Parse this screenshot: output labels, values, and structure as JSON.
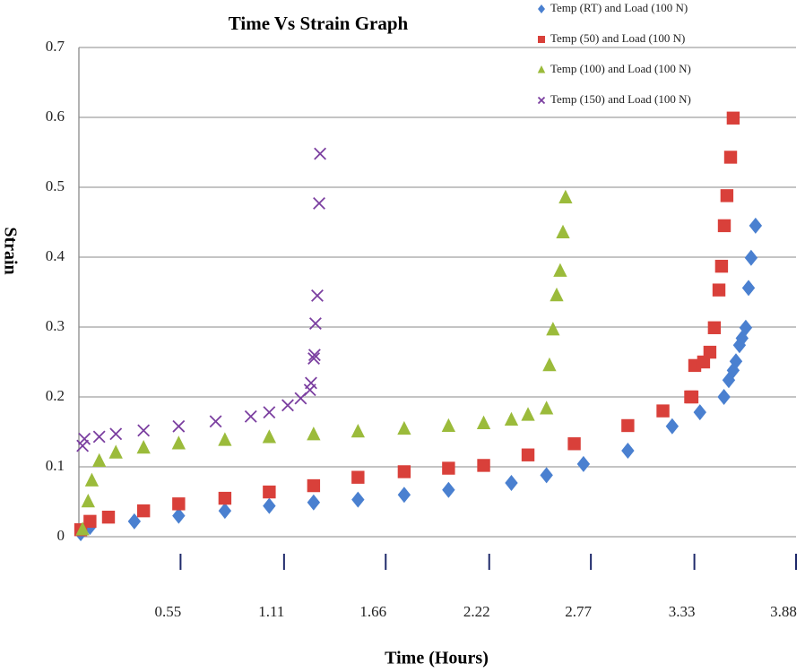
{
  "chart_data": {
    "type": "scatter",
    "title": "Time Vs Strain Graph",
    "x_label": "Time (Hours)",
    "y_label": "Strain",
    "xlim": [
      0,
      3.88
    ],
    "ylim": [
      0,
      0.7
    ],
    "xticks": [
      0.55,
      1.11,
      1.66,
      2.22,
      2.77,
      3.33,
      3.88
    ],
    "yticks": [
      0,
      0.1,
      0.2,
      0.3,
      0.4,
      0.5,
      0.6,
      0.7
    ],
    "grid": true,
    "legend": "top-right",
    "series": [
      {
        "name": "Temp (RT) and Load (100 N)",
        "color": "#4a80d0",
        "marker": "diamond",
        "x": [
          0.01,
          0.06,
          0.3,
          0.54,
          0.79,
          1.03,
          1.27,
          1.51,
          1.76,
          2.0,
          2.34,
          2.53,
          2.73,
          2.97,
          3.21,
          3.36,
          3.49,
          3.516,
          3.54,
          3.555,
          3.574,
          3.588,
          3.608,
          3.623,
          3.637,
          3.661
        ],
        "values": [
          0.005,
          0.014,
          0.022,
          0.03,
          0.037,
          0.044,
          0.049,
          0.053,
          0.06,
          0.067,
          0.077,
          0.088,
          0.104,
          0.123,
          0.158,
          0.178,
          0.2,
          0.224,
          0.238,
          0.251,
          0.274,
          0.284,
          0.299,
          0.356,
          0.399,
          0.445
        ]
      },
      {
        "name": "Temp (50) and Load (100 N)",
        "color": "#d9403a",
        "marker": "square",
        "x": [
          0.01,
          0.06,
          0.16,
          0.35,
          0.54,
          0.79,
          1.03,
          1.27,
          1.51,
          1.76,
          2.0,
          2.19,
          2.43,
          2.68,
          2.97,
          3.16,
          3.31,
          3.317,
          3.332,
          3.38,
          3.414,
          3.438,
          3.463,
          3.477,
          3.492,
          3.506,
          3.526,
          3.54
        ],
        "values": [
          0.01,
          0.022,
          0.028,
          0.037,
          0.047,
          0.055,
          0.064,
          0.073,
          0.085,
          0.093,
          0.098,
          0.102,
          0.117,
          0.133,
          0.159,
          0.18,
          0.2,
          0.2,
          0.245,
          0.25,
          0.264,
          0.299,
          0.353,
          0.387,
          0.445,
          0.488,
          0.543,
          0.599
        ]
      },
      {
        "name": "Temp (100) and Load (100 N)",
        "color": "#9bbb3b",
        "marker": "triangle",
        "x": [
          0.02,
          0.05,
          0.07,
          0.11,
          0.2,
          0.35,
          0.54,
          0.79,
          1.03,
          1.27,
          1.51,
          1.76,
          2.0,
          2.19,
          2.34,
          2.43,
          2.53,
          2.546,
          2.565,
          2.585,
          2.604,
          2.619,
          2.633
        ],
        "values": [
          0.01,
          0.05,
          0.08,
          0.108,
          0.12,
          0.127,
          0.133,
          0.138,
          0.142,
          0.146,
          0.15,
          0.154,
          0.158,
          0.162,
          0.167,
          0.174,
          0.183,
          0.245,
          0.296,
          0.345,
          0.38,
          0.435,
          0.485
        ]
      },
      {
        "name": "Temp (150) and Load (100 N)",
        "color": "#7b3fa0",
        "marker": "x",
        "x": [
          0.02,
          0.03,
          0.11,
          0.2,
          0.35,
          0.54,
          0.74,
          0.93,
          1.03,
          1.13,
          1.2,
          1.25,
          1.256,
          1.271,
          1.275,
          1.28,
          1.29,
          1.3,
          1.305
        ],
        "values": [
          0.13,
          0.14,
          0.143,
          0.147,
          0.152,
          0.158,
          0.165,
          0.172,
          0.178,
          0.188,
          0.198,
          0.21,
          0.22,
          0.255,
          0.26,
          0.305,
          0.345,
          0.477,
          0.548
        ]
      }
    ]
  }
}
